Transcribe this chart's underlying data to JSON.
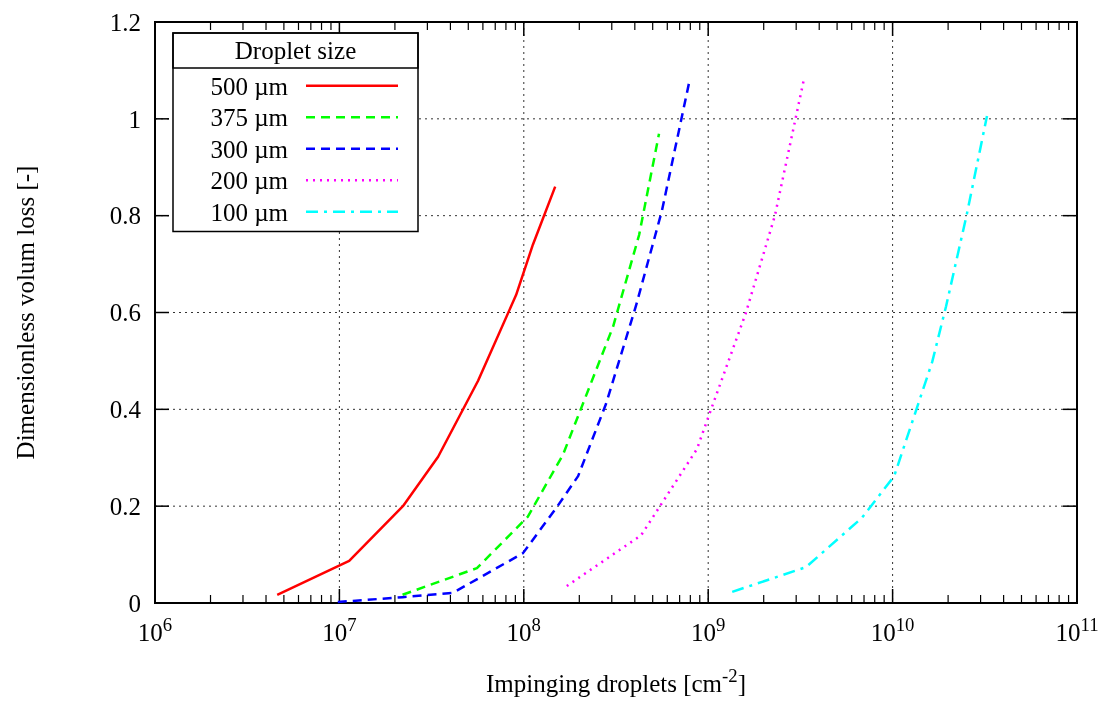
{
  "chart_data": {
    "type": "line",
    "xlabel": "Impinging droplets [cm$^{-2}$]",
    "ylabel": "Dimensionless volum loss [-]",
    "legend_title": "Droplet size",
    "legend": "top left",
    "log": "x",
    "grid": true,
    "xlim": [
      1000000.0,
      100000000000.0
    ],
    "xticks": [
      {
        "value": 1000000.0,
        "label": "10$^{6}$"
      },
      {
        "value": 10000000.0,
        "label": "10$^{7}$"
      },
      {
        "value": 100000000.0,
        "label": "10$^{8}$"
      },
      {
        "value": 1000000000.0,
        "label": "10$^{9}$"
      },
      {
        "value": 10000000000.0,
        "label": "10$^{10}$"
      },
      {
        "value": 100000000000.0,
        "label": "10$^{11}$"
      }
    ],
    "ylim": [
      0,
      1.2
    ],
    "yticks": [
      0,
      0.2,
      0.4,
      0.6,
      0.8,
      1,
      1.2
    ],
    "series": [
      {
        "name": "500 µm",
        "color": "#ff0000",
        "line_style": "solid",
        "x": [
          4600000.0,
          11300000.0,
          22100000.0,
          34300000.0,
          56500000.0,
          90800000.0,
          112000000.0,
          148000000.0
        ],
        "values": [
          0.017,
          0.087,
          0.2,
          0.302,
          0.459,
          0.636,
          0.74,
          0.86
        ]
      },
      {
        "name": "375 µm",
        "color": "#00ff00",
        "line_style": "dashed",
        "x": [
          22000000.0,
          55700000.0,
          105000000.0,
          163000000.0,
          305000000.0,
          422000000.0,
          541000000.0
        ],
        "values": [
          0.017,
          0.072,
          0.178,
          0.306,
          0.571,
          0.76,
          0.969
        ]
      },
      {
        "name": "300 µm",
        "color": "#0000ff",
        "line_style": "dashed",
        "x": [
          9800000.0,
          22000000.0,
          41300000.0,
          99000000.0,
          151000000.0,
          197000000.0,
          279000000.0,
          406000000.0,
          561000000.0,
          787000000.0
        ],
        "values": [
          0.002,
          0.012,
          0.021,
          0.103,
          0.198,
          0.262,
          0.411,
          0.614,
          0.81,
          1.074
        ]
      },
      {
        "name": "200 µm",
        "color": "#ff00ff",
        "line_style": "dotted",
        "x": [
          171000000.0,
          433000000.0,
          869000000.0,
          997000000.0,
          1600000000.0,
          2300000000.0,
          3310000000.0
        ],
        "values": [
          0.035,
          0.14,
          0.318,
          0.382,
          0.599,
          0.8,
          1.083
        ]
      },
      {
        "name": "100 µm",
        "color": "#00ffff",
        "line_style": "dashdot",
        "x": [
          1350000000.0,
          3390000000.0,
          6820000000.0,
          10200000000.0,
          16400000000.0,
          19500000000.0,
          25300000000.0,
          32500000000.0
        ],
        "values": [
          0.023,
          0.074,
          0.176,
          0.262,
          0.498,
          0.613,
          0.804,
          1.006
        ]
      }
    ]
  }
}
